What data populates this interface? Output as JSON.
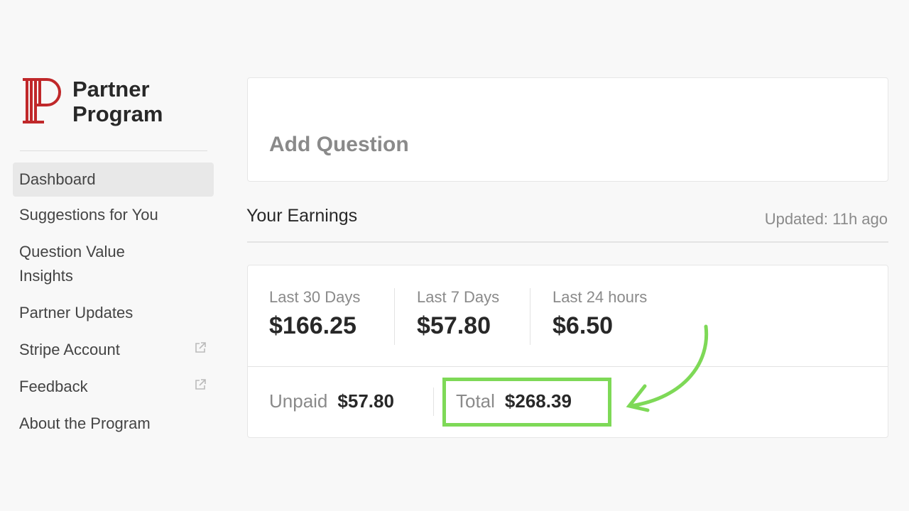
{
  "brand": {
    "name_line1": "Partner",
    "name_line2": "Program",
    "logo_color": "#c0282a"
  },
  "sidebar": {
    "items": [
      {
        "label": "Dashboard",
        "active": true
      },
      {
        "label": "Suggestions for You"
      },
      {
        "label": "Question Value Insights"
      },
      {
        "label": "Partner Updates"
      },
      {
        "label": "Stripe Account",
        "external": true
      },
      {
        "label": "Feedback",
        "external": true
      },
      {
        "label": "About the Program"
      }
    ]
  },
  "question": {
    "placeholder": "Add Question"
  },
  "earnings": {
    "title": "Your Earnings",
    "updated": "Updated: 11h ago",
    "stats": [
      {
        "label": "Last 30 Days",
        "value": "$166.25"
      },
      {
        "label": "Last 7 Days",
        "value": "$57.80"
      },
      {
        "label": "Last 24 hours",
        "value": "$6.50"
      }
    ],
    "unpaid_label": "Unpaid",
    "unpaid_value": "$57.80",
    "total_label": "Total",
    "total_value": "$268.39"
  },
  "highlight_color": "#7ed957"
}
